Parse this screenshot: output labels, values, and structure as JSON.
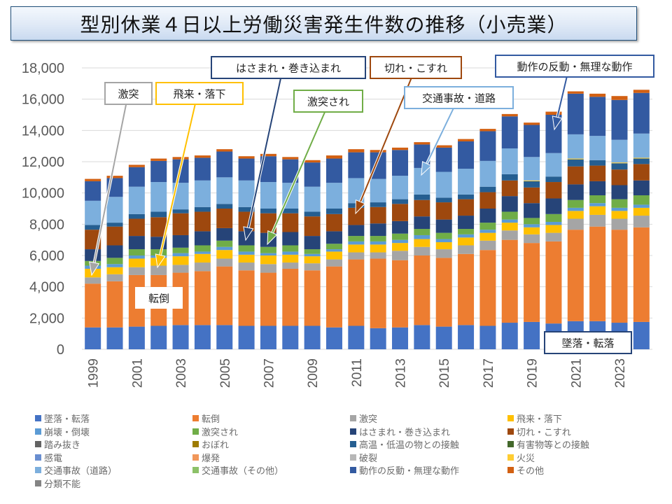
{
  "title": "型別休業４日以上労働災害発生件数の推移（小売業）",
  "chart_data": {
    "type": "bar",
    "stacked": true,
    "title": "型別休業４日以上労働災害発生件数の推移（小売業）",
    "xlabel": "",
    "ylabel": "",
    "ylim": [
      0,
      18000
    ],
    "yticks": [
      0,
      2000,
      4000,
      6000,
      8000,
      10000,
      12000,
      14000,
      16000,
      18000
    ],
    "ytick_labels": [
      "0",
      "2,000",
      "4,000",
      "6,000",
      "8,000",
      "10,000",
      "12,000",
      "14,000",
      "16,000",
      "18,000"
    ],
    "grid": true,
    "legend_position": "bottom",
    "categories": [
      "1999",
      "2000",
      "2001",
      "2002",
      "2003",
      "2004",
      "2005",
      "2006",
      "2007",
      "2008",
      "2009",
      "2010",
      "2011",
      "2012",
      "2013",
      "2014",
      "2015",
      "2016",
      "2017",
      "2018",
      "2019",
      "2020",
      "2021",
      "2022",
      "2023",
      "2024"
    ],
    "xtick_labels": [
      "1999",
      "",
      "2001",
      "",
      "2003",
      "",
      "2005",
      "",
      "2007",
      "",
      "2009",
      "",
      "2011",
      "",
      "2013",
      "",
      "2015",
      "",
      "2017",
      "",
      "2019",
      "",
      "2021",
      "",
      "2023",
      ""
    ],
    "series": [
      {
        "name": "墜落・転落",
        "color": "#4472c4",
        "values": [
          1400,
          1400,
          1450,
          1500,
          1550,
          1550,
          1550,
          1500,
          1500,
          1500,
          1500,
          1400,
          1500,
          1350,
          1400,
          1550,
          1450,
          1550,
          1500,
          1700,
          1750,
          1650,
          1800,
          1800,
          1700,
          1750
        ]
      },
      {
        "name": "転倒",
        "color": "#ed7d31",
        "values": [
          2800,
          2950,
          3300,
          3250,
          3350,
          3450,
          3750,
          3550,
          3400,
          3650,
          3550,
          3900,
          4250,
          4450,
          4300,
          4450,
          4400,
          4550,
          4850,
          5300,
          5050,
          5250,
          5850,
          6050,
          5950,
          6050
        ]
      },
      {
        "name": "激突",
        "color": "#a5a5a5",
        "values": [
          400,
          450,
          500,
          600,
          500,
          550,
          500,
          500,
          550,
          400,
          450,
          450,
          450,
          400,
          600,
          550,
          550,
          550,
          600,
          600,
          550,
          550,
          700,
          750,
          700,
          750
        ]
      },
      {
        "name": "飛来・落下",
        "color": "#ffc000",
        "values": [
          550,
          450,
          550,
          500,
          550,
          550,
          550,
          500,
          550,
          500,
          450,
          500,
          500,
          500,
          500,
          500,
          450,
          500,
          500,
          500,
          450,
          500,
          500,
          550,
          500,
          500
        ]
      },
      {
        "name": "崩壊・倒壊",
        "color": "#5b9bd5",
        "values": [
          200,
          200,
          200,
          150,
          200,
          150,
          200,
          200,
          150,
          200,
          150,
          150,
          200,
          200,
          200,
          250,
          200,
          200,
          200,
          200,
          200,
          200,
          200,
          200,
          200,
          200
        ]
      },
      {
        "name": "激突され",
        "color": "#70ad47",
        "values": [
          300,
          400,
          400,
          400,
          350,
          400,
          400,
          400,
          400,
          400,
          300,
          350,
          350,
          350,
          400,
          400,
          400,
          350,
          450,
          500,
          400,
          500,
          500,
          500,
          550,
          600
        ]
      },
      {
        "name": "踏み抜き",
        "color": "#636363",
        "values": [
          0,
          0,
          0,
          0,
          0,
          0,
          0,
          0,
          0,
          0,
          0,
          0,
          0,
          0,
          0,
          0,
          0,
          0,
          0,
          0,
          0,
          0,
          0,
          0,
          0,
          0
        ]
      },
      {
        "name": "おぼれ",
        "color": "#9e7c00",
        "values": [
          0,
          0,
          0,
          0,
          0,
          0,
          0,
          0,
          0,
          0,
          0,
          0,
          0,
          0,
          0,
          0,
          0,
          0,
          0,
          0,
          0,
          0,
          0,
          0,
          0,
          0
        ]
      },
      {
        "name": "はさまれ・巻き込まれ",
        "color": "#264478",
        "values": [
          750,
          800,
          850,
          800,
          800,
          900,
          800,
          900,
          900,
          850,
          850,
          800,
          700,
          800,
          800,
          800,
          850,
          850,
          900,
          1000,
          950,
          1000,
          1000,
          900,
          900,
          950
        ]
      },
      {
        "name": "切れ・こすれ",
        "color": "#9e480e",
        "values": [
          1250,
          1200,
          1100,
          1250,
          1400,
          1250,
          1250,
          1250,
          1250,
          1200,
          1250,
          1100,
          1100,
          1050,
          1100,
          1050,
          1100,
          1050,
          1050,
          1000,
          1000,
          1050,
          1150,
          1000,
          1000,
          1050
        ]
      },
      {
        "name": "高温・低温の物との接触",
        "color": "#255e91",
        "values": [
          300,
          250,
          300,
          350,
          250,
          300,
          300,
          300,
          300,
          300,
          300,
          350,
          300,
          300,
          300,
          350,
          300,
          300,
          350,
          400,
          400,
          350,
          450,
          350,
          400,
          350
        ]
      },
      {
        "name": "有害物等との接触",
        "color": "#43682b",
        "values": [
          0,
          0,
          0,
          0,
          0,
          0,
          0,
          0,
          0,
          0,
          0,
          0,
          0,
          0,
          0,
          0,
          0,
          0,
          0,
          0,
          0,
          0,
          0,
          0,
          0,
          0
        ]
      },
      {
        "name": "感電",
        "color": "#698ed0",
        "values": [
          0,
          0,
          0,
          0,
          0,
          0,
          0,
          0,
          0,
          0,
          0,
          0,
          0,
          0,
          0,
          0,
          0,
          0,
          0,
          0,
          0,
          0,
          0,
          0,
          0,
          0
        ]
      },
      {
        "name": "爆発",
        "color": "#f1975a",
        "values": [
          0,
          0,
          0,
          0,
          0,
          0,
          0,
          0,
          0,
          0,
          0,
          0,
          0,
          0,
          0,
          0,
          0,
          0,
          0,
          0,
          0,
          0,
          0,
          0,
          0,
          0
        ]
      },
      {
        "name": "破裂",
        "color": "#b7b7b7",
        "values": [
          0,
          0,
          0,
          0,
          0,
          0,
          0,
          0,
          0,
          0,
          0,
          0,
          0,
          0,
          0,
          0,
          0,
          0,
          0,
          0,
          0,
          0,
          0,
          0,
          0,
          0
        ]
      },
      {
        "name": "火災",
        "color": "#ffcd33",
        "values": [
          0,
          0,
          0,
          0,
          0,
          0,
          0,
          0,
          0,
          0,
          0,
          0,
          0,
          0,
          0,
          0,
          0,
          0,
          0,
          0,
          50,
          0,
          50,
          0,
          50,
          50
        ]
      },
      {
        "name": "交通事故（道路）",
        "color": "#7cafdd",
        "values": [
          1550,
          1650,
          1750,
          1900,
          1700,
          1700,
          1700,
          1700,
          1700,
          1650,
          1600,
          1650,
          1600,
          1500,
          1500,
          1700,
          1650,
          1650,
          1650,
          1650,
          1500,
          1500,
          1550,
          1550,
          1450,
          1550
        ]
      },
      {
        "name": "交通事故（その他）",
        "color": "#8cc168",
        "values": [
          0,
          0,
          0,
          0,
          0,
          0,
          0,
          0,
          0,
          0,
          0,
          0,
          0,
          0,
          0,
          0,
          0,
          0,
          0,
          0,
          0,
          0,
          0,
          0,
          0,
          0
        ]
      },
      {
        "name": "動作の反動・無理な動作",
        "color": "#335aa1",
        "values": [
          1250,
          1200,
          1250,
          1350,
          1500,
          1450,
          1650,
          1400,
          1650,
          1500,
          1550,
          1550,
          1650,
          1700,
          1650,
          1500,
          1550,
          1750,
          1900,
          2050,
          2050,
          2450,
          2600,
          2500,
          2550,
          2600
        ]
      },
      {
        "name": "その他",
        "color": "#d26012",
        "values": [
          150,
          150,
          150,
          150,
          150,
          150,
          150,
          150,
          150,
          150,
          150,
          200,
          200,
          150,
          150,
          150,
          150,
          150,
          150,
          150,
          150,
          200,
          150,
          200,
          250,
          200
        ]
      },
      {
        "name": "分類不能",
        "color": "#848484",
        "values": [
          0,
          0,
          0,
          0,
          0,
          0,
          0,
          0,
          0,
          0,
          0,
          0,
          0,
          0,
          0,
          0,
          0,
          0,
          0,
          0,
          0,
          0,
          0,
          0,
          0,
          0
        ]
      }
    ],
    "annotations": [
      {
        "label": "激突",
        "target_series": "激突",
        "target_year": "1999",
        "color": "#a5a5a5"
      },
      {
        "label": "飛来・落下",
        "target_series": "飛来・落下",
        "target_year": "2002",
        "color": "#ffc000"
      },
      {
        "label": "はさまれ・巻き込まれ",
        "target_series": "はさまれ・巻き込まれ",
        "target_year": "2005",
        "color": "#264478"
      },
      {
        "label": "激突され",
        "target_series": "激突され",
        "target_year": "2007",
        "color": "#70ad47"
      },
      {
        "label": "切れ・こすれ",
        "target_series": "切れ・こすれ",
        "target_year": "2011",
        "color": "#9e480e"
      },
      {
        "label": "交通事故・道路",
        "target_series": "交通事故（道路）",
        "target_year": "2014",
        "color": "#7cafdd"
      },
      {
        "label": "動作の反動・無理な動作",
        "target_series": "動作の反動・無理な動作",
        "target_year": "2020",
        "color": "#335aa1"
      },
      {
        "label": "転倒",
        "target_series": "転倒",
        "target_year": "2002",
        "color": "#ffffff"
      },
      {
        "label": "墜落・転落",
        "target_series": "墜落・転落",
        "target_year": "2022",
        "color": "#264478"
      }
    ]
  },
  "legend": {
    "items": [
      {
        "label": "墜落・転落",
        "color": "#4472c4"
      },
      {
        "label": "転倒",
        "color": "#ed7d31"
      },
      {
        "label": "激突",
        "color": "#a5a5a5"
      },
      {
        "label": "飛来・落下",
        "color": "#ffc000"
      },
      {
        "label": "崩壊・倒壊",
        "color": "#5b9bd5"
      },
      {
        "label": "激突され",
        "color": "#70ad47"
      },
      {
        "label": "はさまれ・巻き込まれ",
        "color": "#264478"
      },
      {
        "label": "切れ・こすれ",
        "color": "#9e480e"
      },
      {
        "label": "踏み抜き",
        "color": "#636363"
      },
      {
        "label": "おぼれ",
        "color": "#9e7c00"
      },
      {
        "label": "高温・低温の物との接触",
        "color": "#255e91"
      },
      {
        "label": "有害物等との接触",
        "color": "#43682b"
      },
      {
        "label": "感電",
        "color": "#698ed0"
      },
      {
        "label": "爆発",
        "color": "#f1975a"
      },
      {
        "label": "破裂",
        "color": "#b7b7b7"
      },
      {
        "label": "火災",
        "color": "#ffcd33"
      },
      {
        "label": "交通事故（道路）",
        "color": "#7cafdd"
      },
      {
        "label": "交通事故（その他）",
        "color": "#8cc168"
      },
      {
        "label": "動作の反動・無理な動作",
        "color": "#335aa1"
      },
      {
        "label": "その他",
        "color": "#d26012"
      },
      {
        "label": "分類不能",
        "color": "#848484"
      }
    ]
  }
}
